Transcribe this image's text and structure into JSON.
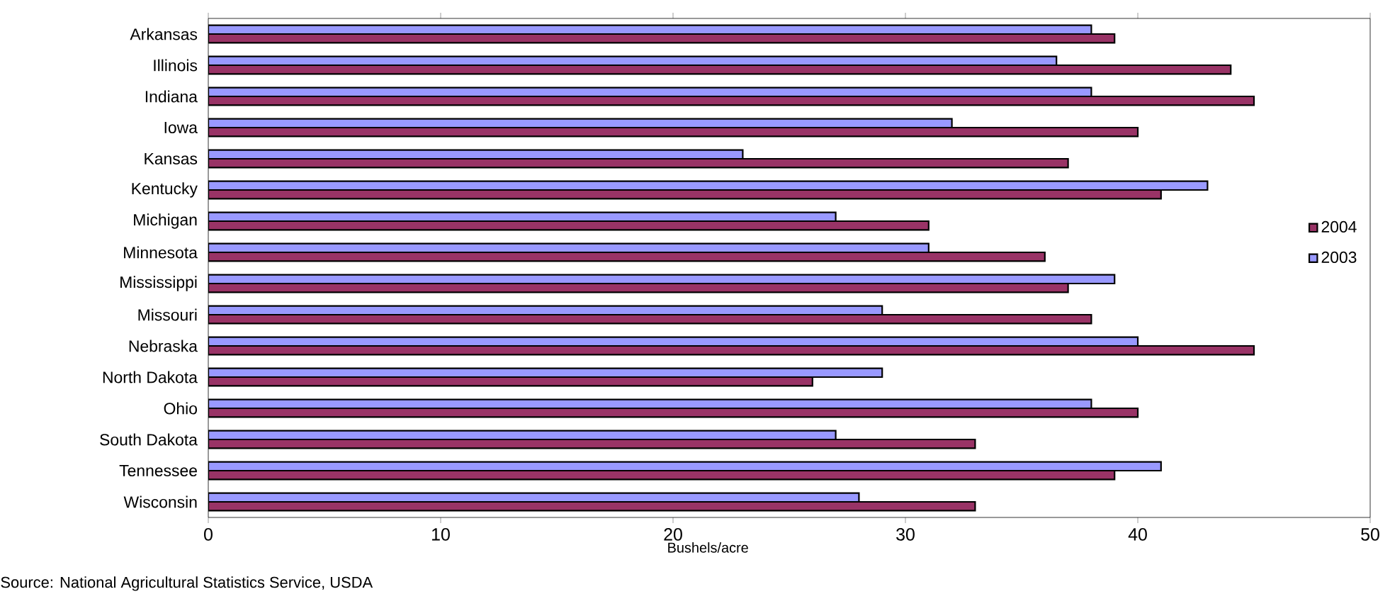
{
  "chart_data": {
    "type": "bar",
    "orientation": "horizontal",
    "xlabel": "Bushels/acre",
    "categories": [
      "Arkansas",
      "Illinois",
      "Indiana",
      "Iowa",
      "Kansas",
      "Kentucky",
      "Michigan",
      "Minnesota",
      "Mississippi",
      "Missouri",
      "Nebraska",
      "North Dakota",
      "Ohio",
      "South Dakota",
      "Tennessee",
      "Wisconsin"
    ],
    "series": [
      {
        "name": "2004",
        "color": "#993366",
        "values": [
          39,
          44,
          45,
          40,
          37,
          41,
          31,
          36,
          37,
          38,
          45,
          26,
          40,
          33,
          39,
          33
        ]
      },
      {
        "name": "2003",
        "color": "#9999ff",
        "values": [
          38,
          36.5,
          38,
          32,
          23,
          43,
          27,
          31,
          39,
          29,
          40,
          29,
          38,
          27,
          41,
          28
        ]
      }
    ],
    "xlim": [
      0,
      50
    ],
    "xticks": [
      0,
      10,
      20,
      30,
      40,
      50
    ],
    "grid": false,
    "legend": "right",
    "annotations": [
      "Source: National Agricultural Statistics Service, USDA"
    ]
  }
}
